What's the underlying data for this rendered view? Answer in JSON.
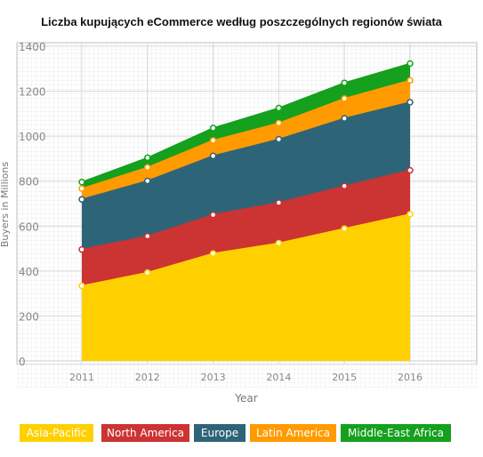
{
  "title": "Liczba kupujących eCommerce według poszczególnych regionów świata",
  "chart_data": {
    "type": "area",
    "stacked": true,
    "x": [
      "2011",
      "2012",
      "2013",
      "2014",
      "2015",
      "2016"
    ],
    "xlabel": "Year",
    "ylabel": "Buyers in Millions",
    "ylim": [
      0,
      1400
    ],
    "yticks": [
      "0",
      "200",
      "400",
      "600",
      "800",
      "1000",
      "1200",
      "1400"
    ],
    "grid": true,
    "legend_position": "bottom",
    "series": [
      {
        "name": "Asia-Pacific",
        "color": "#ffd000",
        "values": [
          334,
          393,
          478,
          524,
          589,
          653
        ]
      },
      {
        "name": "North America",
        "color": "#cc3333",
        "values": [
          162,
          162,
          172,
          180,
          189,
          195
        ]
      },
      {
        "name": "Europe",
        "color": "#2e6478",
        "values": [
          223,
          246,
          262,
          282,
          301,
          303
        ]
      },
      {
        "name": "Latin America",
        "color": "#ff9b00",
        "values": [
          48,
          60,
          69,
          72,
          88,
          97
        ]
      },
      {
        "name": "Middle-East Africa",
        "color": "#15a01e",
        "values": [
          29,
          43,
          55,
          67,
          70,
          75
        ]
      }
    ]
  }
}
